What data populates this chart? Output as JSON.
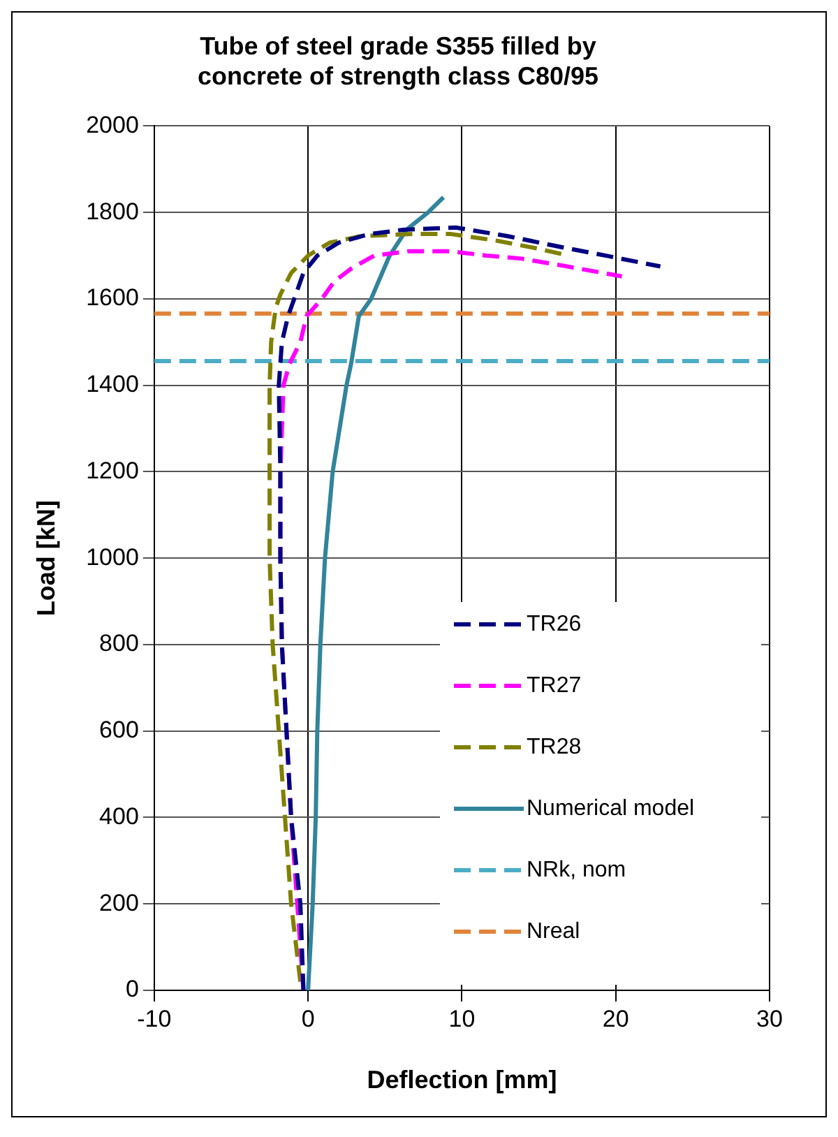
{
  "chart_data": {
    "type": "line",
    "title": "Tube of steel grade S355 filled by concrete of strength class C80/95",
    "xlabel": "Deflection [mm]",
    "ylabel": "Load [kN]",
    "xlim": [
      -10,
      30
    ],
    "xticks": [
      -10,
      0,
      10,
      20,
      30
    ],
    "ylim": [
      0,
      2000
    ],
    "yticks": [
      0,
      200,
      400,
      600,
      800,
      1000,
      1200,
      1400,
      1600,
      1800,
      2000
    ],
    "grid": true,
    "legend": "bottom right",
    "marker": "none",
    "series": [
      {
        "name": "TR26",
        "color": "#000080",
        "line_style": "dashed",
        "x": [
          -0.3,
          -0.5,
          -1.1,
          -1.4,
          -1.7,
          -1.8,
          -1.8,
          -1.9,
          -1.7,
          -1.3,
          -0.9,
          -0.3,
          0.6,
          2.0,
          4.0,
          6.2,
          9.6,
          13.0,
          16.7,
          19.5,
          22.9
        ],
        "values": [
          0,
          200,
          400,
          600,
          800,
          1000,
          1200,
          1400,
          1500,
          1560,
          1600,
          1660,
          1700,
          1730,
          1750,
          1760,
          1765,
          1745,
          1718,
          1699,
          1675
        ]
      },
      {
        "name": "TR27",
        "color": "#ff00ff",
        "line_style": "dashed",
        "x": [
          -0.3,
          -0.7,
          -1.1,
          -1.4,
          -1.7,
          -1.8,
          -1.8,
          -1.6,
          -1.2,
          -0.5,
          -0.1,
          0.9,
          1.7,
          2.8,
          4.3,
          6.5,
          9.3,
          11.6,
          13.9,
          16.7,
          20.4
        ],
        "values": [
          0,
          200,
          400,
          600,
          800,
          1000,
          1200,
          1400,
          1450,
          1500,
          1560,
          1600,
          1640,
          1670,
          1700,
          1710,
          1710,
          1700,
          1693,
          1676,
          1652
        ]
      },
      {
        "name": "TR28",
        "color": "#808000",
        "line_style": "dashed",
        "x": [
          -0.5,
          -1.1,
          -1.5,
          -1.9,
          -2.3,
          -2.5,
          -2.5,
          -2.5,
          -2.4,
          -2.1,
          -1.8,
          -1.1,
          0.0,
          1.4,
          3.4,
          6.8,
          9.3,
          12.2,
          14.7,
          16.7
        ],
        "values": [
          20,
          200,
          400,
          600,
          800,
          1000,
          1200,
          1400,
          1500,
          1580,
          1610,
          1660,
          1700,
          1730,
          1745,
          1750,
          1750,
          1735,
          1718,
          1702
        ]
      },
      {
        "name": "Numerical model",
        "color": "#31849b",
        "line_style": "solid",
        "x": [
          0,
          0.3,
          0.5,
          0.6,
          0.8,
          1.1,
          1.6,
          2.5,
          2.8,
          3.3,
          4.1,
          5.3,
          6.4,
          7.8,
          8.8
        ],
        "values": [
          0,
          200,
          400,
          600,
          800,
          1000,
          1200,
          1400,
          1450,
          1560,
          1600,
          1700,
          1760,
          1800,
          1835
        ]
      },
      {
        "name": "NRk, nom",
        "color": "#4bacc6",
        "line_style": "dashed",
        "x": [
          -10,
          30
        ],
        "values": [
          1456,
          1456
        ]
      },
      {
        "name": "Nreal",
        "color": "#e0843a",
        "line_style": "dashed",
        "x": [
          -10,
          30
        ],
        "values": [
          1566,
          1566
        ]
      }
    ]
  }
}
